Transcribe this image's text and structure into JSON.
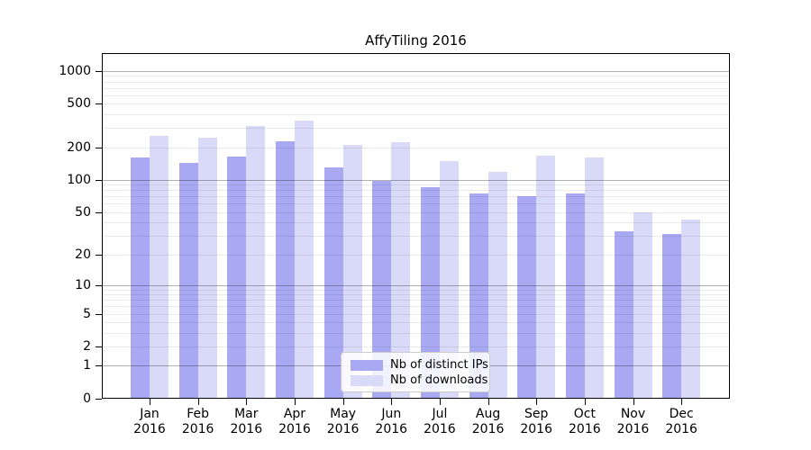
{
  "title": "AffyTiling 2016",
  "colors": {
    "distinct_ips_bar": "#a9a9f3",
    "downloads_bar": "#d9d9f8",
    "major_gridline": "#b3b3b3",
    "minor_gridline": "#ebebeb",
    "axis": "#000000",
    "legend_border": "#cccccc"
  },
  "legend": {
    "items": [
      {
        "label": "Nb of distinct IPs",
        "color": "#a9a9f3"
      },
      {
        "label": "Nb of downloads",
        "color": "#d9d9f8"
      }
    ]
  },
  "chart_data": {
    "type": "bar",
    "title": "AffyTiling 2016",
    "categories": [
      "Jan 2016",
      "Feb 2016",
      "Mar 2016",
      "Apr 2016",
      "May 2016",
      "Jun 2016",
      "Jul 2016",
      "Aug 2016",
      "Sep 2016",
      "Oct 2016",
      "Nov 2016",
      "Dec 2016"
    ],
    "x_tick_month": [
      "Jan",
      "Feb",
      "Mar",
      "Apr",
      "May",
      "Jun",
      "Jul",
      "Aug",
      "Sep",
      "Oct",
      "Nov",
      "Dec"
    ],
    "x_tick_year": "2016",
    "series": [
      {
        "name": "Nb of distinct IPs",
        "color": "#a9a9f3",
        "values": [
          160,
          143,
          163,
          225,
          130,
          97,
          85,
          74,
          71,
          74,
          33,
          31
        ]
      },
      {
        "name": "Nb of downloads",
        "color": "#d9d9f8",
        "values": [
          253,
          244,
          311,
          353,
          210,
          221,
          150,
          119,
          166,
          161,
          50,
          43
        ]
      }
    ],
    "xlabel": "",
    "ylabel": "",
    "y_scale": "log10(value+1)",
    "y_ticks": [
      0,
      1,
      2,
      5,
      10,
      20,
      50,
      100,
      200,
      500,
      1000
    ],
    "y_minor_gridlines": [
      2,
      3,
      4,
      5,
      6,
      7,
      8,
      9,
      20,
      30,
      40,
      50,
      60,
      70,
      80,
      90,
      200,
      300,
      400,
      500,
      600,
      700,
      800,
      900
    ],
    "y_major_gridlines": [
      1,
      10,
      100,
      1000
    ],
    "ylim": [
      0,
      1460
    ],
    "grid": true,
    "grid_on_top_of_bars": true,
    "legend_position": "lower center"
  }
}
